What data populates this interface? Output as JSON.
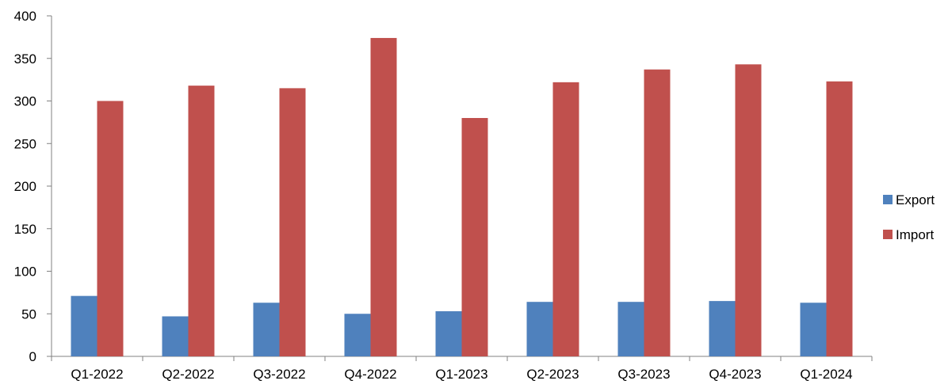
{
  "chart_data": {
    "type": "bar",
    "title": "",
    "xlabel": "",
    "ylabel": "",
    "categories": [
      "Q1-2022",
      "Q2-2022",
      "Q3-2022",
      "Q4-2022",
      "Q1-2023",
      "Q2-2023",
      "Q3-2023",
      "Q4-2023",
      "Q1-2024"
    ],
    "series": [
      {
        "name": "Export",
        "color": "#4f81bd",
        "values": [
          71,
          47,
          63,
          50,
          53,
          64,
          64,
          65,
          63
        ]
      },
      {
        "name": "Import",
        "color": "#c0504d",
        "values": [
          300,
          318,
          315,
          374,
          280,
          322,
          337,
          343,
          323
        ]
      }
    ],
    "ylim": [
      0,
      400
    ],
    "yticks": [
      0,
      50,
      100,
      150,
      200,
      250,
      300,
      350,
      400
    ],
    "grid": false,
    "legend_position": "right"
  }
}
